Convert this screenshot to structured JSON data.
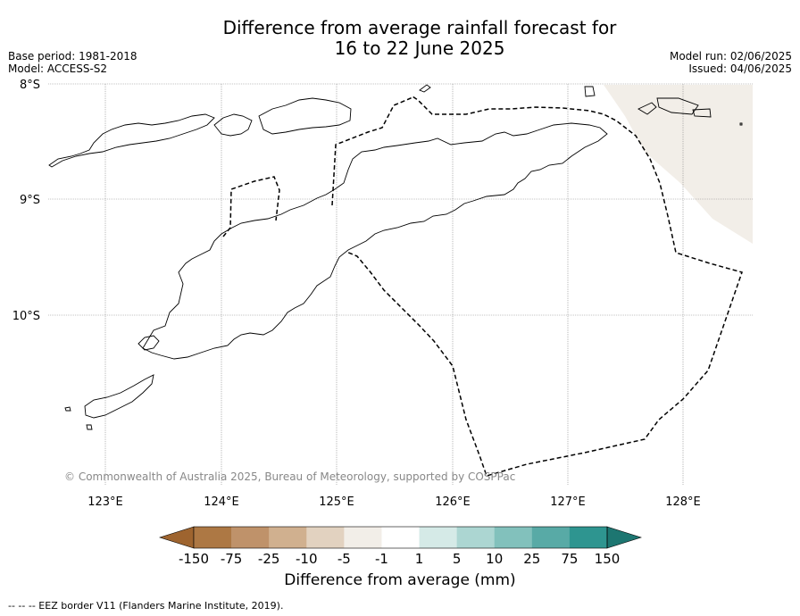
{
  "title": {
    "line1": "Difference from average rainfall forecast for",
    "line2": "16 to 22 June 2025"
  },
  "meta_left": {
    "base_period": "Base period: 1981-2018",
    "model": "Model: ACCESS-S2"
  },
  "meta_right": {
    "model_run": "Model run: 02/06/2025",
    "issued": "Issued: 04/06/2025"
  },
  "map": {
    "lat_labels": [
      "8°S",
      "9°S",
      "10°S"
    ],
    "lon_labels": [
      "123°E",
      "124°E",
      "125°E",
      "126°E",
      "127°E",
      "128°E"
    ],
    "region_color": "#f2eee8",
    "copyright": "© Commonwealth of Australia 2025, Bureau of Meteorology, supported by COSPPac"
  },
  "legend": {
    "tick_labels": [
      "-150",
      "-75",
      "-25",
      "-10",
      "-5",
      "-1",
      "1",
      "5",
      "10",
      "25",
      "75",
      "150"
    ],
    "colors": [
      "#9e642f",
      "#ad7844",
      "#bf926a",
      "#d0b08f",
      "#e2d2c0",
      "#f2eee8",
      "#ffffff",
      "#d5eae7",
      "#acd6d2",
      "#82c1bc",
      "#58aaa6",
      "#2e9590",
      "#1d7671"
    ],
    "label": "Difference from average (mm)"
  },
  "footer": "-- -- -- EEZ border V11 (Flanders Marine Institute, 2019)."
}
